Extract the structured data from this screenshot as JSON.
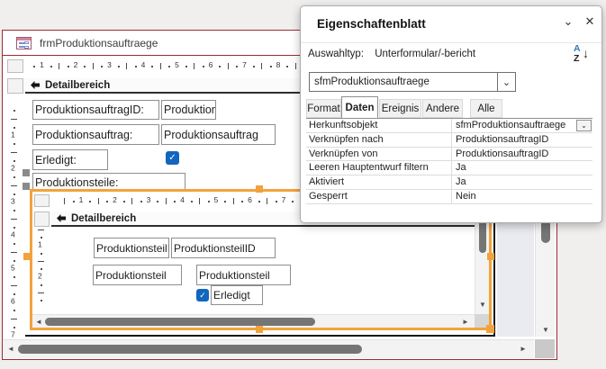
{
  "window": {
    "title": "frmProduktionsauftraege"
  },
  "main_form": {
    "section_header": "Detailbereich",
    "fields": [
      {
        "label": "ProduktionsauftragID:",
        "value": "ProduktionsauftragID"
      },
      {
        "label": "Produktionsauftrag:",
        "value": "Produktionsauftrag"
      },
      {
        "label": "Erledigt:",
        "checked": true
      },
      {
        "label": "Produktionsteile:"
      }
    ]
  },
  "subform": {
    "section_header": "Detailbereich",
    "fields": [
      {
        "label": "ProduktionsteilID",
        "value": "ProduktionsteilID"
      },
      {
        "label": "Produktionsteil",
        "value": "Produktionsteil"
      },
      {
        "label": "Erledigt",
        "checked": true
      }
    ]
  },
  "properties_panel": {
    "title": "Eigenschaftenblatt",
    "selection_type_label": "Auswahltyp:",
    "selection_type_value": "Unterformular/-bericht",
    "selector_value": "sfmProduktionsauftraege",
    "tabs": [
      {
        "label": "Format",
        "active": false
      },
      {
        "label": "Daten",
        "active": true
      },
      {
        "label": "Ereignis",
        "active": false
      },
      {
        "label": "Andere",
        "active": false
      },
      {
        "label": "Alle",
        "active": false
      }
    ],
    "rows": [
      {
        "name": "Herkunftsobjekt",
        "value": "sfmProduktionsauftraege",
        "has_dropdown": true
      },
      {
        "name": "Verknüpfen nach",
        "value": "ProduktionsauftragID"
      },
      {
        "name": "Verknüpfen von",
        "value": "ProduktionsauftragID"
      },
      {
        "name": "Leeren Hauptentwurf filtern",
        "value": "Ja"
      },
      {
        "name": "Aktiviert",
        "value": "Ja"
      },
      {
        "name": "Gesperrt",
        "value": "Nein"
      }
    ]
  },
  "rulers": {
    "main_h": [
      1,
      2,
      3,
      4,
      5,
      6,
      7,
      8
    ],
    "main_v": [
      1,
      2,
      3,
      4,
      5,
      6,
      7
    ],
    "subform_h": [
      1,
      2,
      3,
      4,
      5,
      6,
      7
    ],
    "subform_v": [
      1,
      2
    ]
  },
  "icons": {
    "collapse": "⌄",
    "close": "✕",
    "combo_arrow": "⌄",
    "sort_a": "A",
    "sort_z": "Z",
    "sort_arrow": "↓",
    "check": "✓",
    "scroll_left": "◄",
    "scroll_right": "►",
    "scroll_up": "▲",
    "scroll_down": "▼"
  },
  "colors": {
    "window_border_red": "#9b2c35",
    "selection_orange": "#f2a23c",
    "checkbox_blue": "#1266be",
    "background": "#f0efed"
  }
}
